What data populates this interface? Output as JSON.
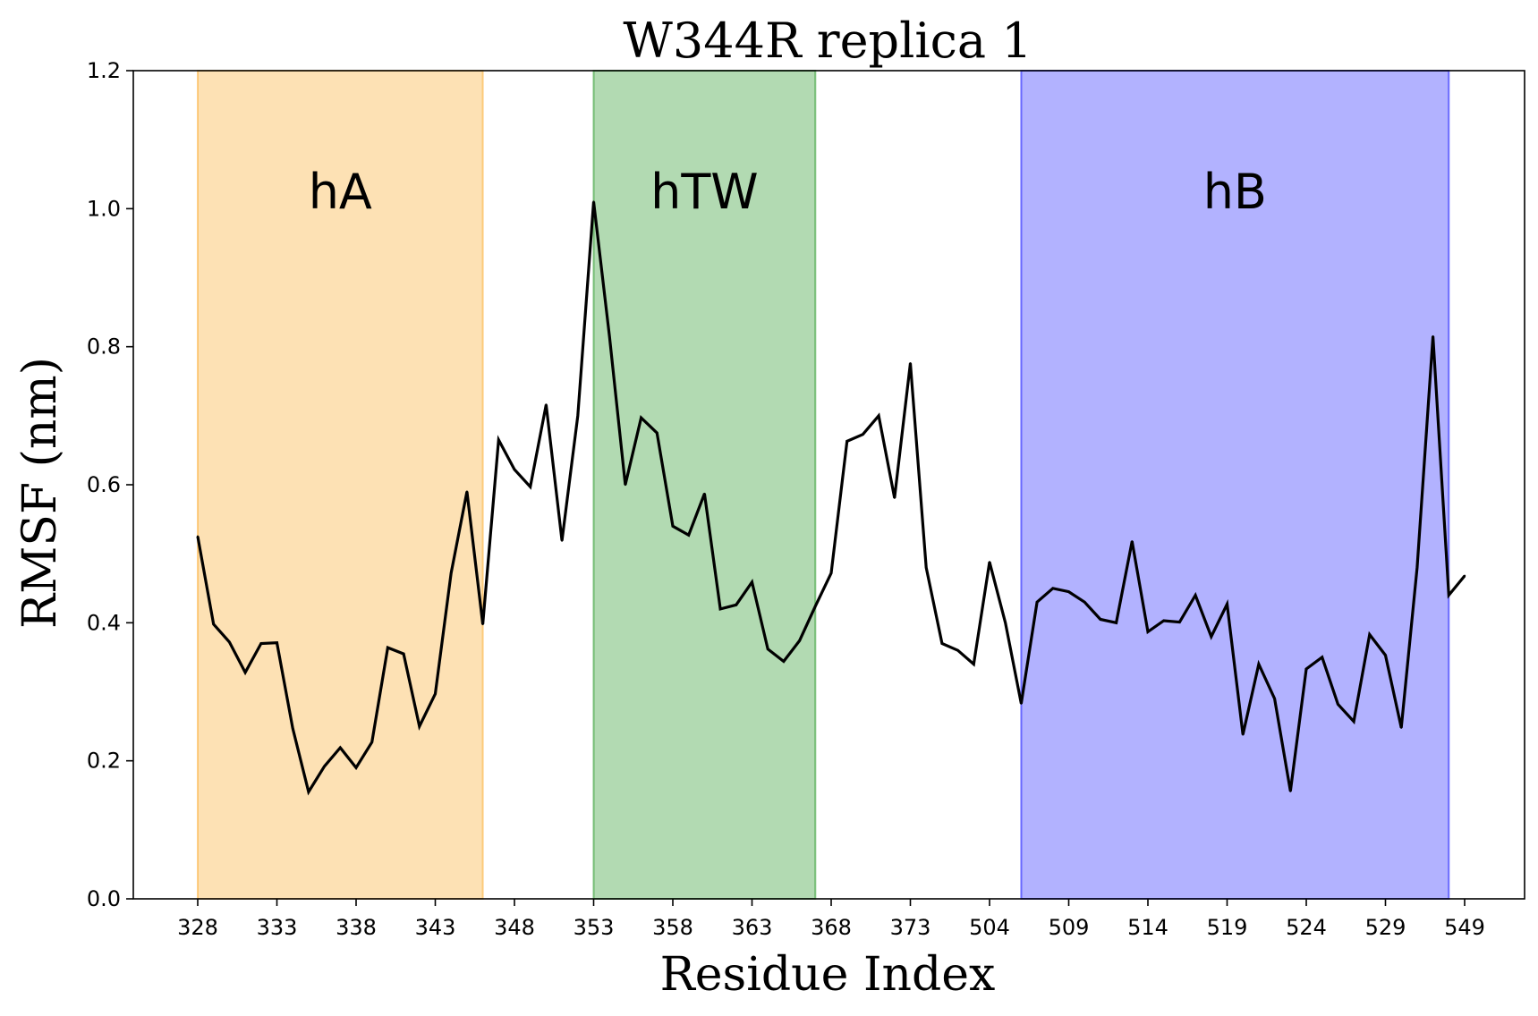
{
  "chart_data": {
    "type": "line",
    "title": "W344R replica 1",
    "xlabel": "Residue Index",
    "ylabel": "RMSF (nm)",
    "ylim": [
      0,
      1.2
    ],
    "xticks": [
      "328",
      "333",
      "338",
      "343",
      "348",
      "353",
      "358",
      "363",
      "368",
      "373",
      "504",
      "509",
      "514",
      "519",
      "524",
      "529",
      "549"
    ],
    "yticks": [
      "0.0",
      "0.2",
      "0.4",
      "0.6",
      "0.8",
      "1.0",
      "1.2"
    ],
    "regions": [
      {
        "label": "hA",
        "start_index": 0,
        "end_index": 18,
        "color": "#fbb03b",
        "opacity": 0.38
      },
      {
        "label": "hTW",
        "start_index": 25,
        "end_index": 39,
        "color": "#2e9b2e",
        "opacity": 0.37
      },
      {
        "label": "hB",
        "start_index": 52,
        "end_index": 79,
        "color": "#0000ff",
        "opacity": 0.3
      }
    ],
    "series": [
      {
        "color": "#000000",
        "values": [
          0.525,
          0.398,
          0.372,
          0.328,
          0.37,
          0.371,
          0.247,
          0.155,
          0.192,
          0.219,
          0.19,
          0.227,
          0.364,
          0.355,
          0.25,
          0.297,
          0.472,
          0.59,
          0.398,
          0.665,
          0.622,
          0.597,
          0.716,
          0.519,
          0.7,
          1.01,
          0.815,
          0.6,
          0.697,
          0.675,
          0.54,
          0.527,
          0.587,
          0.42,
          0.426,
          0.459,
          0.362,
          0.344,
          0.374,
          0.424,
          0.472,
          0.663,
          0.673,
          0.7,
          0.581,
          0.776,
          0.48,
          0.37,
          0.36,
          0.34,
          0.488,
          0.4,
          0.283,
          0.43,
          0.45,
          0.445,
          0.43,
          0.405,
          0.4,
          0.518,
          0.387,
          0.403,
          0.401,
          0.44,
          0.38,
          0.427,
          0.238,
          0.34,
          0.29,
          0.156,
          0.333,
          0.35,
          0.282,
          0.257,
          0.383,
          0.353,
          0.248,
          0.48,
          0.815,
          0.44,
          0.468
        ]
      }
    ]
  }
}
